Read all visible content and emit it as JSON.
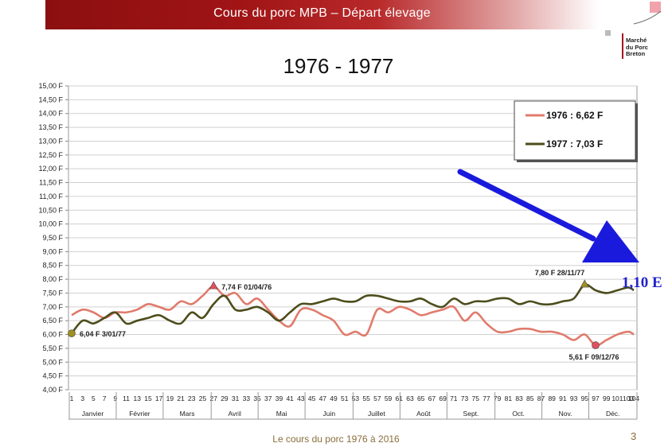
{
  "header": {
    "title": "Cours du porc MPB – Départ élevage"
  },
  "logo": {
    "line1": "Marché",
    "line2": "du Porc",
    "line3": "Breton"
  },
  "footer": {
    "text": "Le cours du porc 1976 à 2016",
    "page": "3"
  },
  "annotation": {
    "value": "1,10 E",
    "arrow_color": "#1a1adc"
  },
  "chart_data": {
    "type": "line",
    "title": "1976 - 1977",
    "ylim": [
      4.0,
      15.0
    ],
    "ytick_step": 0.5,
    "ytick_labels": [
      "4,00 F",
      "4,50 F",
      "5,00 F",
      "5,50 F",
      "6,00 F",
      "6,50 F",
      "7,00 F",
      "7,50 F",
      "8,00 F",
      "8,50 F",
      "9,00 F",
      "9,50 F",
      "10,00 F",
      "10,50 F",
      "11,00 F",
      "11,50 F",
      "12,00 F",
      "12,50 F",
      "13,00 F",
      "13,50 F",
      "14,00 F",
      "14,50 F",
      "15,00 F"
    ],
    "xlim": [
      1,
      104
    ],
    "xtick_labels": [
      "1",
      "3",
      "5",
      "7",
      "9",
      "11",
      "13",
      "15",
      "17",
      "19",
      "21",
      "23",
      "25",
      "27",
      "29",
      "31",
      "33",
      "35",
      "37",
      "39",
      "41",
      "43",
      "45",
      "47",
      "49",
      "51",
      "53",
      "55",
      "57",
      "59",
      "61",
      "63",
      "65",
      "67",
      "69",
      "71",
      "73",
      "75",
      "77",
      "79",
      "81",
      "83",
      "85",
      "87",
      "89",
      "91",
      "93",
      "95",
      "97",
      "99",
      "101",
      "103",
      "104"
    ],
    "months": [
      "Janvier",
      "Février",
      "Mars",
      "Avril",
      "Mai",
      "Juin",
      "Juillet",
      "Août",
      "Sept.",
      "Oct.",
      "Nov.",
      "Déc."
    ],
    "grid": true,
    "legend_position": "top-right",
    "x_points": [
      1,
      3,
      5,
      7,
      9,
      11,
      13,
      15,
      17,
      19,
      21,
      23,
      25,
      27,
      29,
      31,
      33,
      35,
      37,
      39,
      41,
      43,
      45,
      47,
      49,
      51,
      53,
      55,
      57,
      59,
      61,
      63,
      65,
      67,
      69,
      71,
      73,
      75,
      77,
      79,
      81,
      83,
      85,
      87,
      89,
      91,
      93,
      95,
      97,
      99,
      101,
      103,
      104
    ],
    "series": [
      {
        "name": "1976 : 6,62 F",
        "color": "#e07b6c",
        "values": [
          6.7,
          6.9,
          6.8,
          6.6,
          6.8,
          6.8,
          6.9,
          7.1,
          7.0,
          6.9,
          7.2,
          7.1,
          7.4,
          7.74,
          7.4,
          7.5,
          7.1,
          7.3,
          6.9,
          6.5,
          6.3,
          6.9,
          6.9,
          6.7,
          6.5,
          6.0,
          6.1,
          6.0,
          6.9,
          6.8,
          7.0,
          6.9,
          6.7,
          6.8,
          6.9,
          7.0,
          6.5,
          6.8,
          6.4,
          6.1,
          6.1,
          6.2,
          6.2,
          6.1,
          6.1,
          6.0,
          5.8,
          6.0,
          5.61,
          5.8,
          6.0,
          6.1,
          6.0
        ]
      },
      {
        "name": "1977 : 7,03 F",
        "color": "#4d4d1c",
        "values": [
          6.04,
          6.5,
          6.4,
          6.6,
          6.8,
          6.4,
          6.5,
          6.6,
          6.7,
          6.5,
          6.4,
          6.8,
          6.6,
          7.1,
          7.4,
          6.9,
          6.9,
          7.0,
          6.8,
          6.5,
          6.8,
          7.1,
          7.1,
          7.2,
          7.3,
          7.2,
          7.2,
          7.4,
          7.4,
          7.3,
          7.2,
          7.2,
          7.3,
          7.1,
          7.0,
          7.3,
          7.1,
          7.2,
          7.2,
          7.3,
          7.3,
          7.1,
          7.2,
          7.1,
          7.1,
          7.2,
          7.3,
          7.8,
          7.6,
          7.5,
          7.6,
          7.7,
          7.6
        ]
      }
    ],
    "annotations": [
      {
        "label": "7,74 F 01/04/76",
        "x": 27,
        "y": 7.74,
        "series": 0,
        "marker": "triangle"
      },
      {
        "label": "6,04 F 3/01/77",
        "x": 1,
        "y": 6.04,
        "series": 1,
        "marker": "circle"
      },
      {
        "label": "7,80 F 28/11/77",
        "x": 95,
        "y": 7.8,
        "series": 1,
        "marker": "triangle"
      },
      {
        "label": "5,61 F 09/12/76",
        "x": 97,
        "y": 5.61,
        "series": 0,
        "marker": "circle"
      }
    ]
  }
}
